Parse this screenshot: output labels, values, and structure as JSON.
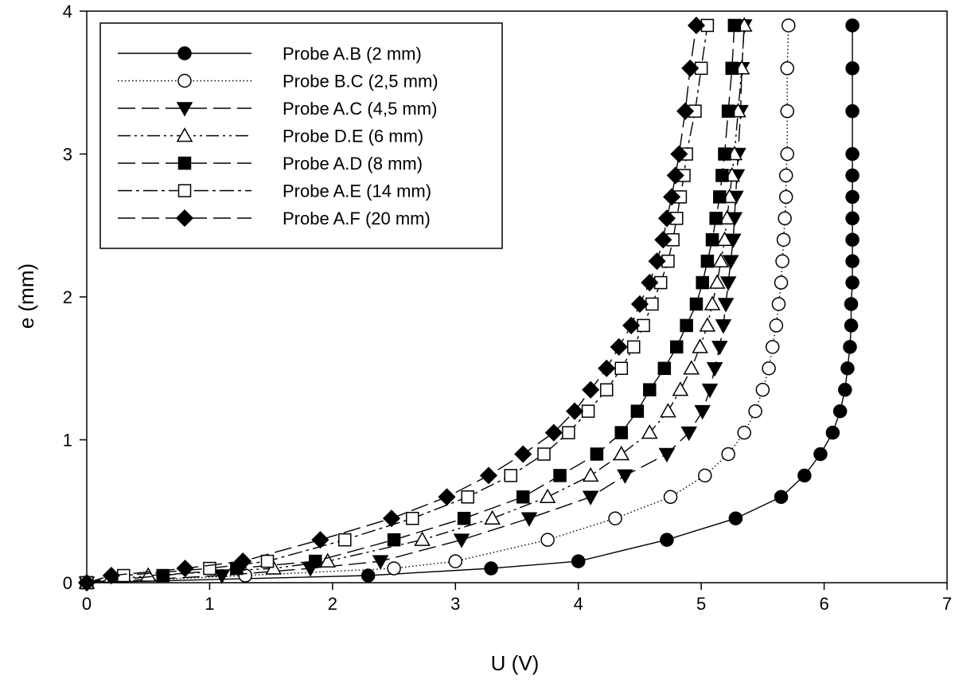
{
  "chart_data": {
    "type": "line",
    "xlabel": "U (V)",
    "ylabel": "e (mm)",
    "xlim": [
      0,
      7
    ],
    "ylim": [
      0,
      4
    ],
    "xticks": [
      "0",
      "1",
      "2",
      "3",
      "4",
      "5",
      "6",
      "7"
    ],
    "yticks": [
      "0",
      "1",
      "2",
      "3",
      "4"
    ],
    "grid": false,
    "legend_position": "top-left",
    "series": [
      {
        "name": "Probe A.B (2 mm)",
        "marker": "circle-filled",
        "line": "solid",
        "points": [
          [
            0,
            0
          ],
          [
            2.29,
            0.05
          ],
          [
            3.29,
            0.1
          ],
          [
            4.0,
            0.15
          ],
          [
            4.72,
            0.3
          ],
          [
            5.28,
            0.45
          ],
          [
            5.65,
            0.6
          ],
          [
            5.84,
            0.75
          ],
          [
            5.97,
            0.9
          ],
          [
            6.07,
            1.05
          ],
          [
            6.13,
            1.2
          ],
          [
            6.17,
            1.35
          ],
          [
            6.19,
            1.5
          ],
          [
            6.21,
            1.65
          ],
          [
            6.22,
            1.8
          ],
          [
            6.22,
            1.95
          ],
          [
            6.23,
            2.1
          ],
          [
            6.23,
            2.25
          ],
          [
            6.23,
            2.4
          ],
          [
            6.23,
            2.55
          ],
          [
            6.23,
            2.7
          ],
          [
            6.23,
            2.85
          ],
          [
            6.23,
            3.0
          ],
          [
            6.23,
            3.3
          ],
          [
            6.23,
            3.6
          ],
          [
            6.23,
            3.9
          ]
        ]
      },
      {
        "name": "Probe B.C (2,5 mm)",
        "marker": "circle-open",
        "line": "dotted",
        "points": [
          [
            0,
            0
          ],
          [
            1.29,
            0.05
          ],
          [
            2.5,
            0.1
          ],
          [
            3.0,
            0.15
          ],
          [
            3.75,
            0.3
          ],
          [
            4.3,
            0.45
          ],
          [
            4.75,
            0.6
          ],
          [
            5.03,
            0.75
          ],
          [
            5.22,
            0.9
          ],
          [
            5.35,
            1.05
          ],
          [
            5.44,
            1.2
          ],
          [
            5.5,
            1.35
          ],
          [
            5.55,
            1.5
          ],
          [
            5.58,
            1.65
          ],
          [
            5.61,
            1.8
          ],
          [
            5.63,
            1.95
          ],
          [
            5.65,
            2.1
          ],
          [
            5.66,
            2.25
          ],
          [
            5.67,
            2.4
          ],
          [
            5.68,
            2.55
          ],
          [
            5.69,
            2.7
          ],
          [
            5.69,
            2.85
          ],
          [
            5.7,
            3.0
          ],
          [
            5.7,
            3.3
          ],
          [
            5.7,
            3.6
          ],
          [
            5.71,
            3.9
          ]
        ]
      },
      {
        "name": "Probe A.C (4,5 mm)",
        "marker": "triangle-down-filled",
        "line": "long-dash",
        "points": [
          [
            0,
            0
          ],
          [
            1.1,
            0.05
          ],
          [
            1.82,
            0.1
          ],
          [
            2.39,
            0.15
          ],
          [
            3.05,
            0.3
          ],
          [
            3.6,
            0.45
          ],
          [
            4.1,
            0.6
          ],
          [
            4.38,
            0.75
          ],
          [
            4.72,
            0.9
          ],
          [
            4.9,
            1.05
          ],
          [
            5.01,
            1.2
          ],
          [
            5.07,
            1.35
          ],
          [
            5.11,
            1.5
          ],
          [
            5.15,
            1.65
          ],
          [
            5.18,
            1.8
          ],
          [
            5.2,
            1.95
          ],
          [
            5.22,
            2.1
          ],
          [
            5.24,
            2.25
          ],
          [
            5.26,
            2.4
          ],
          [
            5.27,
            2.55
          ],
          [
            5.28,
            2.7
          ],
          [
            5.29,
            2.85
          ],
          [
            5.3,
            3.0
          ],
          [
            5.32,
            3.3
          ],
          [
            5.33,
            3.6
          ],
          [
            5.35,
            3.9
          ]
        ]
      },
      {
        "name": "Probe D.E (6 mm)",
        "marker": "triangle-up-open",
        "line": "dash-dot-dot",
        "points": [
          [
            0,
            0
          ],
          [
            0.5,
            0.05
          ],
          [
            1.52,
            0.1
          ],
          [
            1.96,
            0.15
          ],
          [
            2.73,
            0.3
          ],
          [
            3.3,
            0.45
          ],
          [
            3.75,
            0.6
          ],
          [
            4.1,
            0.75
          ],
          [
            4.35,
            0.9
          ],
          [
            4.58,
            1.05
          ],
          [
            4.73,
            1.2
          ],
          [
            4.83,
            1.35
          ],
          [
            4.92,
            1.5
          ],
          [
            4.99,
            1.65
          ],
          [
            5.05,
            1.8
          ],
          [
            5.09,
            1.95
          ],
          [
            5.13,
            2.1
          ],
          [
            5.16,
            2.25
          ],
          [
            5.19,
            2.4
          ],
          [
            5.21,
            2.55
          ],
          [
            5.23,
            2.7
          ],
          [
            5.25,
            2.85
          ],
          [
            5.27,
            3.0
          ],
          [
            5.3,
            3.3
          ],
          [
            5.33,
            3.6
          ],
          [
            5.35,
            3.9
          ]
        ]
      },
      {
        "name": "Probe A.D (8 mm)",
        "marker": "square-filled",
        "line": "long-dash",
        "points": [
          [
            0,
            0
          ],
          [
            0.62,
            0.05
          ],
          [
            1.22,
            0.1
          ],
          [
            1.86,
            0.15
          ],
          [
            2.5,
            0.3
          ],
          [
            3.07,
            0.45
          ],
          [
            3.55,
            0.6
          ],
          [
            3.85,
            0.75
          ],
          [
            4.15,
            0.9
          ],
          [
            4.35,
            1.05
          ],
          [
            4.48,
            1.2
          ],
          [
            4.58,
            1.35
          ],
          [
            4.7,
            1.5
          ],
          [
            4.8,
            1.65
          ],
          [
            4.88,
            1.8
          ],
          [
            4.96,
            1.95
          ],
          [
            5.01,
            2.1
          ],
          [
            5.05,
            2.25
          ],
          [
            5.09,
            2.4
          ],
          [
            5.12,
            2.55
          ],
          [
            5.15,
            2.7
          ],
          [
            5.17,
            2.85
          ],
          [
            5.19,
            3.0
          ],
          [
            5.22,
            3.3
          ],
          [
            5.25,
            3.6
          ],
          [
            5.27,
            3.9
          ]
        ]
      },
      {
        "name": "Probe A.E (14 mm)",
        "marker": "square-open",
        "line": "dash-dot",
        "points": [
          [
            0,
            0
          ],
          [
            0.3,
            0.05
          ],
          [
            1.0,
            0.1
          ],
          [
            1.47,
            0.15
          ],
          [
            2.1,
            0.3
          ],
          [
            2.65,
            0.45
          ],
          [
            3.1,
            0.6
          ],
          [
            3.45,
            0.75
          ],
          [
            3.72,
            0.9
          ],
          [
            3.92,
            1.05
          ],
          [
            4.08,
            1.2
          ],
          [
            4.23,
            1.35
          ],
          [
            4.35,
            1.5
          ],
          [
            4.45,
            1.65
          ],
          [
            4.53,
            1.8
          ],
          [
            4.6,
            1.95
          ],
          [
            4.67,
            2.1
          ],
          [
            4.73,
            2.25
          ],
          [
            4.77,
            2.4
          ],
          [
            4.8,
            2.55
          ],
          [
            4.83,
            2.7
          ],
          [
            4.86,
            2.85
          ],
          [
            4.88,
            3.0
          ],
          [
            4.95,
            3.3
          ],
          [
            5.0,
            3.6
          ],
          [
            5.05,
            3.9
          ]
        ]
      },
      {
        "name": "Probe A.F (20 mm)",
        "marker": "diamond-filled",
        "line": "long-dash",
        "points": [
          [
            0,
            0
          ],
          [
            0.2,
            0.05
          ],
          [
            0.8,
            0.1
          ],
          [
            1.27,
            0.15
          ],
          [
            1.9,
            0.3
          ],
          [
            2.48,
            0.45
          ],
          [
            2.93,
            0.6
          ],
          [
            3.27,
            0.75
          ],
          [
            3.55,
            0.9
          ],
          [
            3.8,
            1.05
          ],
          [
            3.97,
            1.2
          ],
          [
            4.1,
            1.35
          ],
          [
            4.23,
            1.5
          ],
          [
            4.33,
            1.65
          ],
          [
            4.43,
            1.8
          ],
          [
            4.5,
            1.95
          ],
          [
            4.58,
            2.1
          ],
          [
            4.64,
            2.25
          ],
          [
            4.69,
            2.4
          ],
          [
            4.72,
            2.55
          ],
          [
            4.76,
            2.7
          ],
          [
            4.79,
            2.85
          ],
          [
            4.82,
            3.0
          ],
          [
            4.87,
            3.3
          ],
          [
            4.91,
            3.6
          ],
          [
            4.96,
            3.9
          ]
        ]
      }
    ]
  }
}
